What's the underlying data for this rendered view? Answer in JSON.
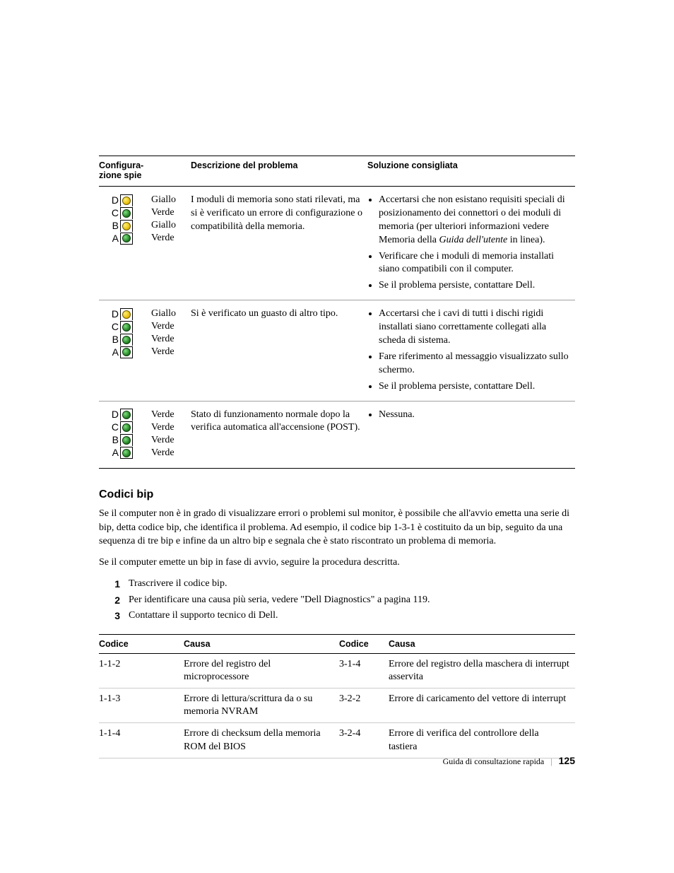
{
  "colors": {
    "giallo_led": "#e6b800",
    "verde_led": "#1e7a1e",
    "rule": "#000000",
    "subrule": "#a0a0a0",
    "background": "#ffffff",
    "text": "#000000"
  },
  "typography": {
    "serif_family": "Georgia, Times New Roman, serif",
    "sans_family": "Arial, Helvetica, sans-serif",
    "body_size_pt": 10,
    "header_size_pt": 9,
    "section_title_size_pt": 12
  },
  "light_table": {
    "headers": {
      "config": "Configura-\nzione spie",
      "desc": "Descrizione del problema",
      "sol": "Soluzione consigliata"
    },
    "letters": [
      "D",
      "C",
      "B",
      "A"
    ],
    "rows": [
      {
        "leds": [
          "giallo",
          "verde",
          "giallo",
          "verde"
        ],
        "labels": [
          "Giallo",
          "Verde",
          "Giallo",
          "Verde"
        ],
        "desc": "I moduli di memoria sono stati rilevati, ma si è verificato un errore di configurazione o compatibilità della memoria.",
        "sol": [
          "Accertarsi che non esistano requisiti speciali di posizionamento dei connettori o dei moduli di memoria (per ulteriori informazioni vedere Memoria della Guida dell'utente in linea).",
          "Verificare che i moduli di memoria installati siano compatibili con il computer.",
          "Se il problema persiste, contattare Dell."
        ]
      },
      {
        "leds": [
          "giallo",
          "verde",
          "verde",
          "verde"
        ],
        "labels": [
          "Giallo",
          "Verde",
          "Verde",
          "Verde"
        ],
        "desc": "Si è verificato un guasto di altro tipo.",
        "sol": [
          "Accertarsi che i cavi di tutti i dischi rigidi installati siano correttamente collegati alla scheda di sistema.",
          "Fare riferimento al messaggio visualizzato sullo schermo.",
          "Se il problema persiste, contattare Dell."
        ]
      },
      {
        "leds": [
          "verde",
          "verde",
          "verde",
          "verde"
        ],
        "labels": [
          "Verde",
          "Verde",
          "Verde",
          "Verde"
        ],
        "desc": "Stato di funzionamento normale dopo la verifica automatica all'accensione (POST).",
        "sol": [
          "Nessuna."
        ]
      }
    ]
  },
  "section": {
    "title": "Codici bip",
    "para1": "Se il computer non è in grado di visualizzare errori o problemi sul monitor, è possibile che all'avvio emetta una serie di bip, detta codice bip, che identifica il problema. Ad esempio, il codice bip 1-3-1 è costituito da un bip, seguito da una sequenza di tre bip e infine da un altro bip e segnala che è stato riscontrato un problema di memoria.",
    "para2": "Se il computer emette un bip in fase di avvio, seguire la procedura descritta.",
    "steps": [
      "Trascrivere il codice bip.",
      "Per identificare una causa più seria, vedere \"Dell Diagnostics\" a pagina 119.",
      "Contattare il supporto tecnico di Dell."
    ]
  },
  "beep_table": {
    "headers": {
      "code": "Codice",
      "cause": "Causa"
    },
    "rows": [
      {
        "c1": "1-1-2",
        "t1": "Errore del registro del microprocessore",
        "c2": "3-1-4",
        "t2": "Errore del registro della maschera di interrupt asservita"
      },
      {
        "c1": "1-1-3",
        "t1": "Errore di lettura/scrittura da o su memoria NVRAM",
        "c2": "3-2-2",
        "t2": "Errore di caricamento del vettore di interrupt"
      },
      {
        "c1": "1-1-4",
        "t1": "Errore di checksum della memoria ROM del BIOS",
        "c2": "3-2-4",
        "t2": "Errore di verifica del controllore della tastiera"
      }
    ]
  },
  "footer": {
    "label": "Guida di consultazione rapida",
    "page": "125"
  }
}
